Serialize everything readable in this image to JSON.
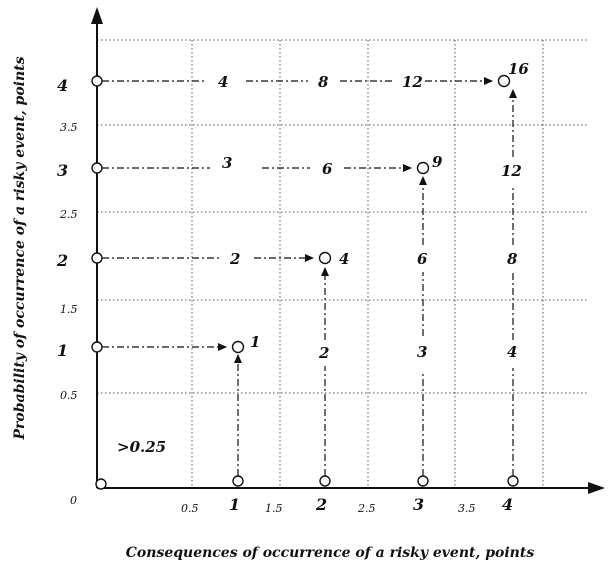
{
  "axes": {
    "x_title": "Consequences of occurrence of a risky event, points",
    "y_title": "Probability of occurrence of a risky event, points",
    "origin_label": "0",
    "x_ticks_major": [
      "1",
      "2",
      "3",
      "4"
    ],
    "x_ticks_minor": [
      "0.5",
      "1.5",
      "2.5",
      "3.5"
    ],
    "y_ticks_major": [
      "1",
      "2",
      "3",
      "4"
    ],
    "y_ticks_minor": [
      "0.5",
      "1.5",
      "2.5",
      "3.5"
    ]
  },
  "region_label": ">0.25",
  "products": {
    "row1": {
      "end": "1"
    },
    "row2": {
      "mid": "2",
      "end": "4"
    },
    "row3": {
      "a": "3",
      "b": "6",
      "end": "9"
    },
    "row4": {
      "a": "4",
      "b": "8",
      "c": "12",
      "end": "16"
    },
    "col2": {
      "mid": "2"
    },
    "col3": {
      "a": "3",
      "b": "6"
    },
    "col4": {
      "a": "4",
      "b": "8",
      "c": "12"
    }
  }
}
